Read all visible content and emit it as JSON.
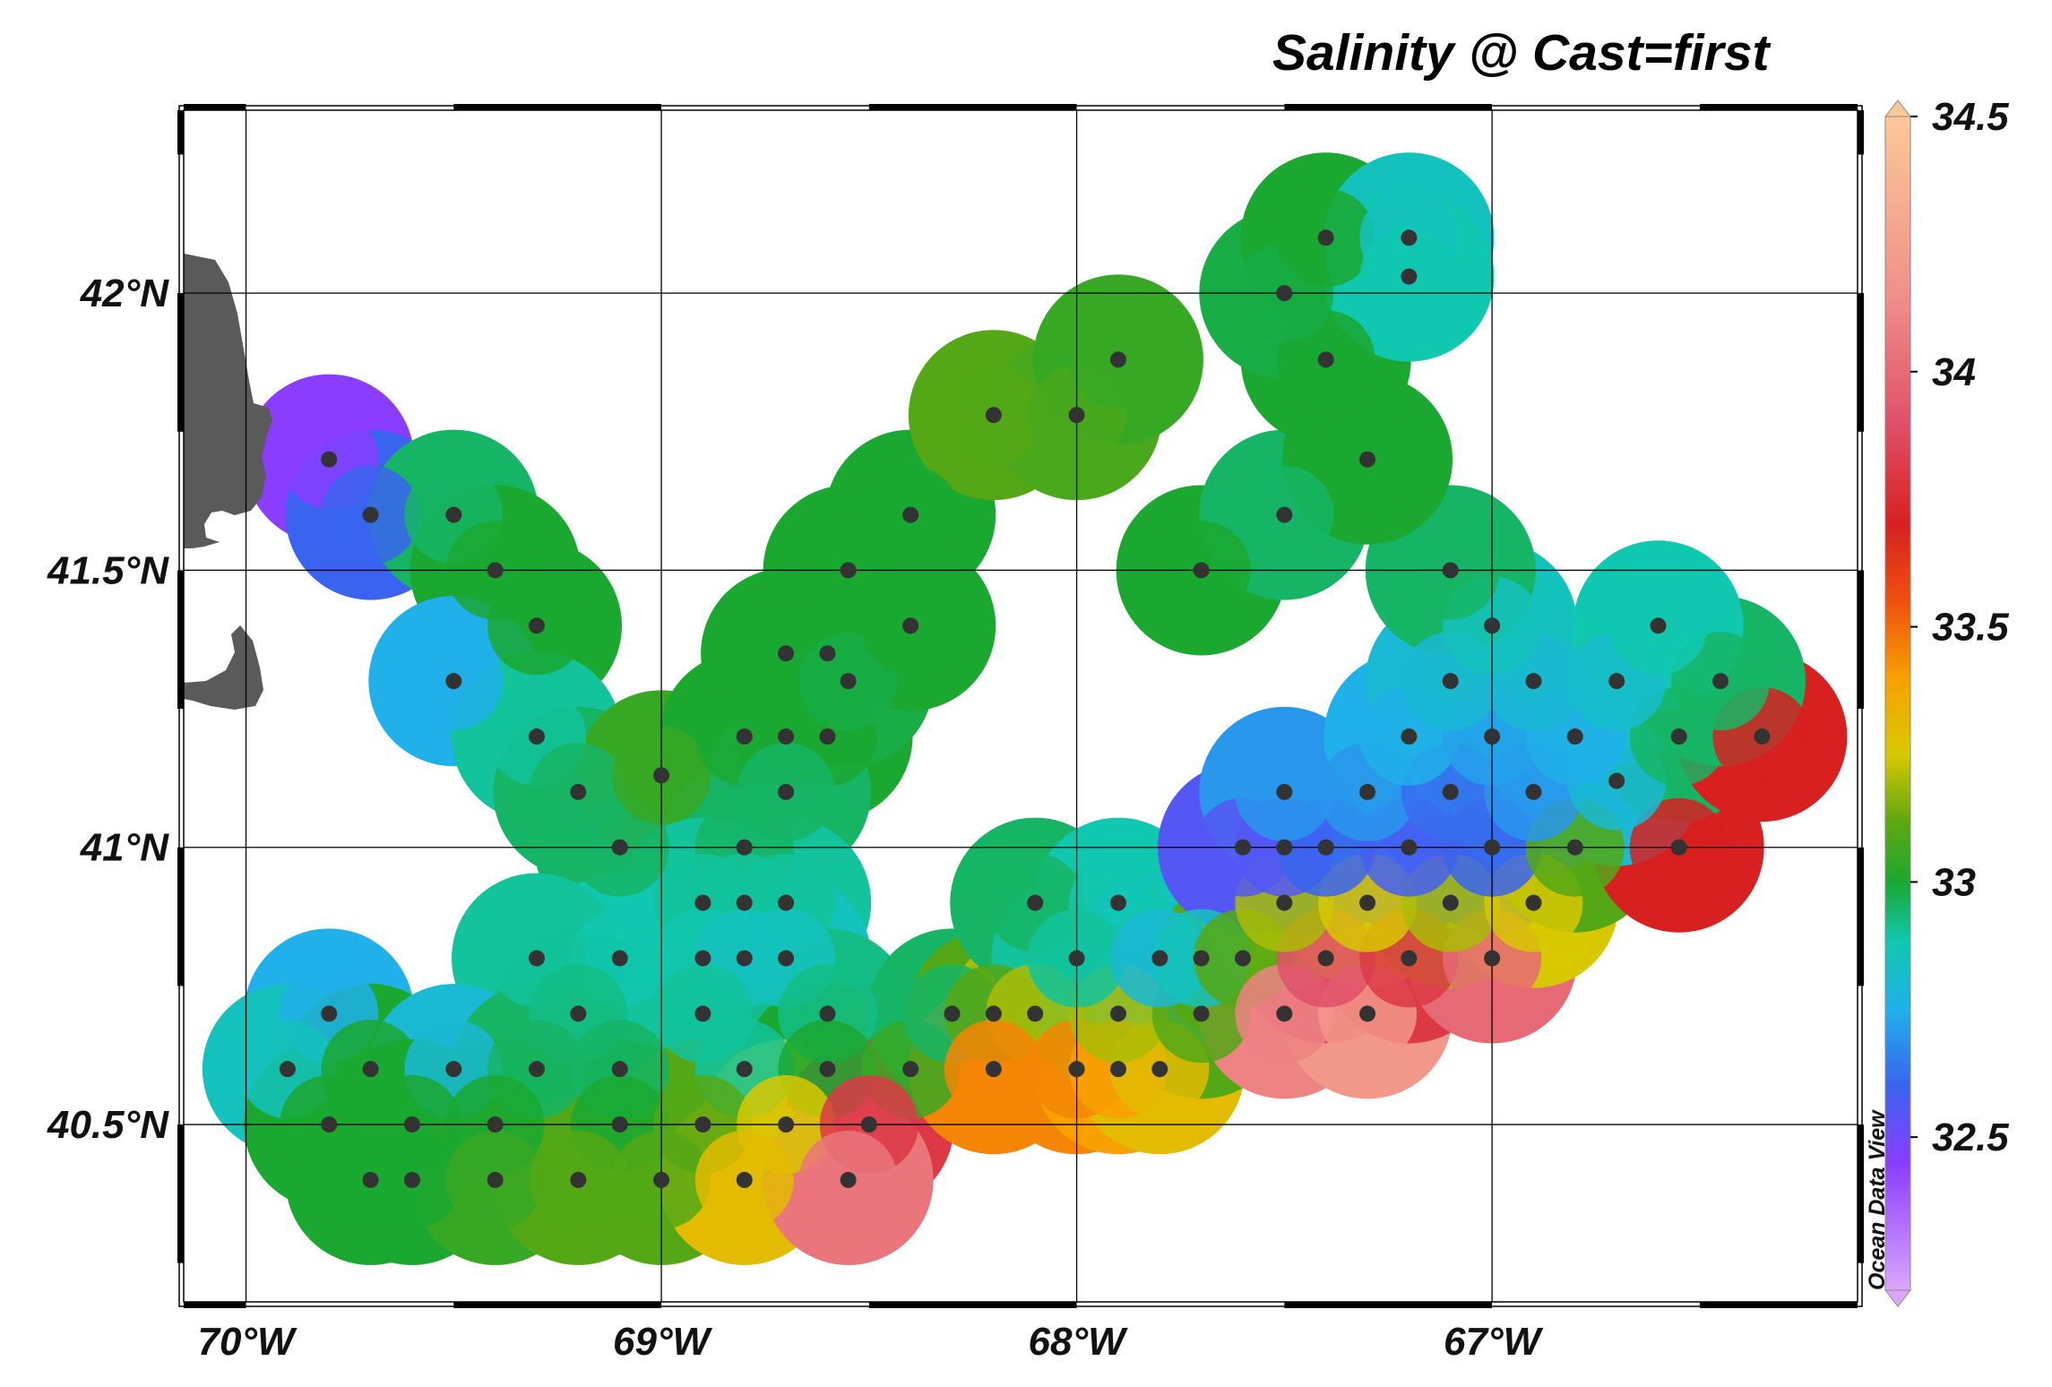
{
  "title": "Salinity @ Cast=first",
  "watermark": "Ocean Data View",
  "map": {
    "lon_range": [
      -70.15,
      -66.12
    ],
    "lat_range": [
      40.18,
      42.33
    ],
    "lat_ticks": [
      {
        "value": 42.0,
        "label": "42°N"
      },
      {
        "value": 41.5,
        "label": "41.5°N"
      },
      {
        "value": 41.0,
        "label": "41°N"
      },
      {
        "value": 40.5,
        "label": "40.5°N"
      }
    ],
    "lon_ticks": [
      {
        "value": -70.0,
        "label": "70°W"
      },
      {
        "value": -69.0,
        "label": "69°W"
      },
      {
        "value": -68.0,
        "label": "68°W"
      },
      {
        "value": -67.0,
        "label": "67°W"
      }
    ],
    "land_color": "#5a5a5a",
    "station_color": "#333333"
  },
  "colorbar": {
    "min": 32.2,
    "max": 34.5,
    "ticks": [
      {
        "value": 34.5,
        "label": "34.5"
      },
      {
        "value": 34.0,
        "label": "34"
      },
      {
        "value": 33.5,
        "label": "33.5"
      },
      {
        "value": 33.0,
        "label": "33"
      },
      {
        "value": 32.5,
        "label": "32.5"
      }
    ],
    "stops": [
      {
        "v": 32.2,
        "c": "#dca6ff"
      },
      {
        "v": 32.45,
        "c": "#8a3cff"
      },
      {
        "v": 32.6,
        "c": "#3a64f0"
      },
      {
        "v": 32.75,
        "c": "#20b0ea"
      },
      {
        "v": 32.88,
        "c": "#10c8b0"
      },
      {
        "v": 33.0,
        "c": "#1aa830"
      },
      {
        "v": 33.12,
        "c": "#60a810"
      },
      {
        "v": 33.25,
        "c": "#d8c800"
      },
      {
        "v": 33.4,
        "c": "#f8a000"
      },
      {
        "v": 33.55,
        "c": "#f05010"
      },
      {
        "v": 33.7,
        "c": "#d82020"
      },
      {
        "v": 33.9,
        "c": "#e0506a"
      },
      {
        "v": 34.15,
        "c": "#f09088"
      },
      {
        "v": 34.5,
        "c": "#fcc898"
      }
    ]
  },
  "chart_data": {
    "type": "scatter",
    "title": "Salinity @ Cast=first",
    "xlabel": "",
    "ylabel": "",
    "xlim": [
      -70.15,
      -66.12
    ],
    "ylim": [
      40.18,
      42.33
    ],
    "points": [
      [
        -69.8,
        41.7,
        32.45
      ],
      [
        -69.7,
        41.6,
        32.6
      ],
      [
        -69.5,
        41.6,
        32.95
      ],
      [
        -69.4,
        41.5,
        33.0
      ],
      [
        -69.3,
        41.4,
        33.0
      ],
      [
        -69.5,
        41.3,
        32.75
      ],
      [
        -69.3,
        41.2,
        32.9
      ],
      [
        -69.2,
        41.1,
        32.95
      ],
      [
        -69.1,
        41.0,
        32.95
      ],
      [
        -69.0,
        41.13,
        33.05
      ],
      [
        -68.8,
        41.2,
        33.0
      ],
      [
        -68.7,
        41.2,
        33.0
      ],
      [
        -68.6,
        41.2,
        33.0
      ],
      [
        -68.7,
        41.1,
        32.95
      ],
      [
        -68.7,
        41.35,
        33.0
      ],
      [
        -68.6,
        41.35,
        33.0
      ],
      [
        -68.55,
        41.3,
        32.98
      ],
      [
        -68.55,
        41.5,
        33.0
      ],
      [
        -68.4,
        41.4,
        33.0
      ],
      [
        -68.4,
        41.6,
        33.0
      ],
      [
        -68.2,
        41.78,
        33.1
      ],
      [
        -68.0,
        41.78,
        33.08
      ],
      [
        -67.9,
        41.88,
        33.05
      ],
      [
        -68.8,
        41.0,
        32.95
      ],
      [
        -68.9,
        40.9,
        32.9
      ],
      [
        -68.8,
        40.9,
        32.9
      ],
      [
        -68.7,
        40.9,
        32.9
      ],
      [
        -68.9,
        40.8,
        32.88
      ],
      [
        -68.8,
        40.8,
        32.85
      ],
      [
        -68.7,
        40.8,
        32.85
      ],
      [
        -69.1,
        40.8,
        32.88
      ],
      [
        -69.3,
        40.8,
        32.9
      ],
      [
        -69.2,
        40.7,
        32.92
      ],
      [
        -69.8,
        40.7,
        32.75
      ],
      [
        -69.9,
        40.6,
        32.85
      ],
      [
        -69.7,
        40.6,
        33.0
      ],
      [
        -69.5,
        40.6,
        32.8
      ],
      [
        -69.3,
        40.6,
        32.95
      ],
      [
        -69.1,
        40.6,
        32.95
      ],
      [
        -68.9,
        40.7,
        32.9
      ],
      [
        -68.8,
        40.6,
        32.9
      ],
      [
        -68.6,
        40.7,
        32.92
      ],
      [
        -68.6,
        40.6,
        33.0
      ],
      [
        -68.4,
        40.6,
        33.05
      ],
      [
        -69.8,
        40.5,
        33.0
      ],
      [
        -69.6,
        40.5,
        33.0
      ],
      [
        -69.4,
        40.5,
        33.0
      ],
      [
        -69.1,
        40.5,
        33.0
      ],
      [
        -68.9,
        40.5,
        33.1
      ],
      [
        -68.7,
        40.5,
        33.25
      ],
      [
        -68.5,
        40.5,
        33.8
      ],
      [
        -69.7,
        40.4,
        33.0
      ],
      [
        -69.6,
        40.4,
        33.0
      ],
      [
        -69.4,
        40.4,
        33.05
      ],
      [
        -69.2,
        40.4,
        33.1
      ],
      [
        -69.0,
        40.4,
        33.1
      ],
      [
        -68.8,
        40.4,
        33.3
      ],
      [
        -68.55,
        40.4,
        34.05
      ],
      [
        -68.3,
        40.7,
        32.95
      ],
      [
        -68.2,
        40.7,
        33.1
      ],
      [
        -68.1,
        40.7,
        33.2
      ],
      [
        -68.2,
        40.6,
        33.45
      ],
      [
        -68.0,
        40.6,
        33.45
      ],
      [
        -67.9,
        40.6,
        33.4
      ],
      [
        -67.8,
        40.6,
        33.3
      ],
      [
        -67.9,
        40.7,
        33.2
      ],
      [
        -67.7,
        40.7,
        33.1
      ],
      [
        -68.1,
        40.9,
        32.95
      ],
      [
        -67.9,
        40.9,
        32.88
      ],
      [
        -68.0,
        40.8,
        32.9
      ],
      [
        -67.8,
        40.8,
        32.8
      ],
      [
        -67.7,
        40.8,
        32.85
      ],
      [
        -67.6,
        40.8,
        33.1
      ],
      [
        -67.5,
        40.7,
        34.1
      ],
      [
        -67.3,
        40.7,
        34.2
      ],
      [
        -67.4,
        40.8,
        33.9
      ],
      [
        -67.2,
        40.8,
        33.8
      ],
      [
        -67.0,
        40.8,
        34.0
      ],
      [
        -67.5,
        40.9,
        33.2
      ],
      [
        -67.3,
        40.9,
        33.25
      ],
      [
        -67.1,
        40.9,
        33.2
      ],
      [
        -66.9,
        40.9,
        33.25
      ],
      [
        -67.6,
        41.0,
        32.55
      ],
      [
        -67.5,
        41.0,
        32.55
      ],
      [
        -67.4,
        41.0,
        32.6
      ],
      [
        -67.2,
        41.0,
        32.58
      ],
      [
        -67.0,
        41.0,
        32.6
      ],
      [
        -66.8,
        41.0,
        33.1
      ],
      [
        -66.55,
        41.0,
        33.7
      ],
      [
        -67.5,
        41.1,
        32.7
      ],
      [
        -67.3,
        41.1,
        32.7
      ],
      [
        -67.1,
        41.1,
        32.62
      ],
      [
        -66.9,
        41.1,
        32.7
      ],
      [
        -66.7,
        41.12,
        32.8
      ],
      [
        -67.2,
        41.2,
        32.75
      ],
      [
        -67.0,
        41.2,
        32.72
      ],
      [
        -66.8,
        41.2,
        32.75
      ],
      [
        -66.55,
        41.2,
        32.95
      ],
      [
        -66.35,
        41.2,
        33.7
      ],
      [
        -67.1,
        41.3,
        32.8
      ],
      [
        -66.9,
        41.3,
        32.8
      ],
      [
        -66.7,
        41.3,
        32.82
      ],
      [
        -66.45,
        41.3,
        32.95
      ],
      [
        -67.0,
        41.4,
        32.85
      ],
      [
        -66.6,
        41.4,
        32.88
      ],
      [
        -67.1,
        41.5,
        32.95
      ],
      [
        -67.7,
        41.5,
        33.0
      ],
      [
        -67.5,
        41.6,
        32.95
      ],
      [
        -67.3,
        41.7,
        33.0
      ],
      [
        -67.4,
        41.88,
        33.0
      ],
      [
        -67.5,
        42.0,
        32.98
      ],
      [
        -67.4,
        42.1,
        33.0
      ],
      [
        -67.2,
        42.1,
        32.85
      ],
      [
        -67.2,
        42.03,
        32.88
      ]
    ]
  }
}
